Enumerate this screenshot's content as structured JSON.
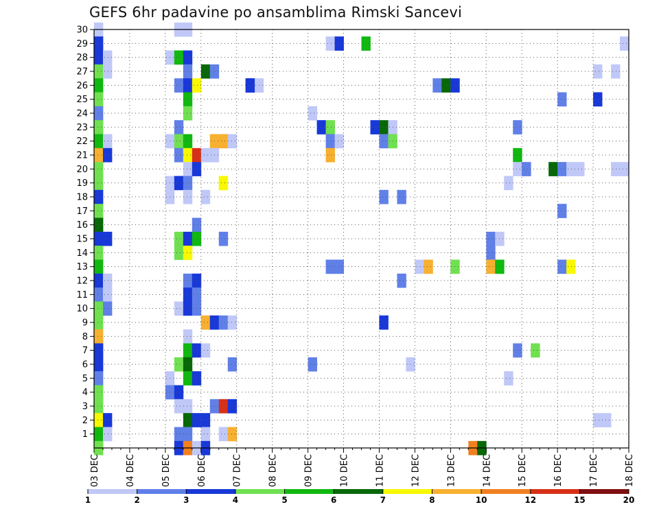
{
  "chart_data": {
    "type": "heatmap",
    "title": "GEFS 6hr padavine po ansamblima Rimski Sancevi",
    "xlabel": "",
    "ylabel": "",
    "x_start": "03 DEC",
    "x_end": "18 DEC",
    "x_ticks": [
      "03 DEC",
      "04 DEC",
      "05 DEC",
      "06 DEC",
      "07 DEC",
      "08 DEC",
      "09 DEC",
      "10 DEC",
      "11 DEC",
      "12 DEC",
      "13 DEC",
      "14 DEC",
      "15 DEC",
      "16 DEC",
      "17 DEC",
      "18 DEC"
    ],
    "x_step_hours": 6,
    "y_ticks": [
      1,
      2,
      3,
      4,
      5,
      6,
      7,
      8,
      9,
      10,
      11,
      12,
      13,
      14,
      15,
      16,
      17,
      18,
      19,
      20,
      21,
      22,
      23,
      24,
      25,
      26,
      27,
      28,
      29,
      30
    ],
    "y_range": [
      0,
      30
    ],
    "grid": true,
    "colorbar": {
      "colors": [
        "#c0c8f8",
        "#6080e8",
        "#1838d8",
        "#70e050",
        "#10b810",
        "#086808",
        "#f8f800",
        "#f8b030",
        "#f08020",
        "#d83018",
        "#801010"
      ],
      "labels": [
        "1",
        "2",
        "3",
        "4",
        "5",
        "6",
        "7",
        "8",
        "10",
        "12",
        "15",
        "20"
      ]
    },
    "cells": [
      {
        "m": 30,
        "s": 0,
        "c": "#c0c8f8"
      },
      {
        "m": 29,
        "s": 0,
        "c": "#1838d8"
      },
      {
        "m": 28,
        "s": 0,
        "c": "#1838d8"
      },
      {
        "m": 27,
        "s": 0,
        "c": "#70e050"
      },
      {
        "m": 26,
        "s": 0,
        "c": "#10b810"
      },
      {
        "m": 25,
        "s": 0,
        "c": "#70e050"
      },
      {
        "m": 24,
        "s": 0,
        "c": "#6080e8"
      },
      {
        "m": 23,
        "s": 0,
        "c": "#70e050"
      },
      {
        "m": 22,
        "s": 0,
        "c": "#10b810"
      },
      {
        "m": 21,
        "s": 0,
        "c": "#f8b030"
      },
      {
        "m": 20,
        "s": 0,
        "c": "#70e050"
      },
      {
        "m": 19,
        "s": 0,
        "c": "#70e050"
      },
      {
        "m": 18,
        "s": 0,
        "c": "#1838d8"
      },
      {
        "m": 17,
        "s": 0,
        "c": "#70e050"
      },
      {
        "m": 16,
        "s": 0,
        "c": "#086808"
      },
      {
        "m": 15,
        "s": 0,
        "c": "#1838d8"
      },
      {
        "m": 14,
        "s": 0,
        "c": "#70e050"
      },
      {
        "m": 13,
        "s": 0,
        "c": "#10b810"
      },
      {
        "m": 12,
        "s": 0,
        "c": "#1838d8"
      },
      {
        "m": 11,
        "s": 0,
        "c": "#6080e8"
      },
      {
        "m": 10,
        "s": 0,
        "c": "#70e050"
      },
      {
        "m": 9,
        "s": 0,
        "c": "#70e050"
      },
      {
        "m": 8,
        "s": 0,
        "c": "#f8b030"
      },
      {
        "m": 7,
        "s": 0,
        "c": "#1838d8"
      },
      {
        "m": 6,
        "s": 0,
        "c": "#1838d8"
      },
      {
        "m": 5,
        "s": 0,
        "c": "#6080e8"
      },
      {
        "m": 4,
        "s": 0,
        "c": "#70e050"
      },
      {
        "m": 3,
        "s": 0,
        "c": "#70e050"
      },
      {
        "m": 2,
        "s": 0,
        "c": "#f8f800"
      },
      {
        "m": 1,
        "s": 0,
        "c": "#10b810"
      },
      {
        "m": 0,
        "s": 0,
        "c": "#70e050"
      },
      {
        "m": 28,
        "s": 1,
        "c": "#c0c8f8"
      },
      {
        "m": 27,
        "s": 1,
        "c": "#c0c8f8"
      },
      {
        "m": 22,
        "s": 1,
        "c": "#c0c8f8"
      },
      {
        "m": 21,
        "s": 1,
        "c": "#1838d8"
      },
      {
        "m": 15,
        "s": 1,
        "c": "#1838d8"
      },
      {
        "m": 12,
        "s": 1,
        "c": "#c0c8f8"
      },
      {
        "m": 11,
        "s": 1,
        "c": "#c0c8f8"
      },
      {
        "m": 10,
        "s": 1,
        "c": "#6080e8"
      },
      {
        "m": 2,
        "s": 1,
        "c": "#1838d8"
      },
      {
        "m": 1,
        "s": 1,
        "c": "#c0c8f8"
      },
      {
        "m": 30,
        "s": 9,
        "c": "#c0c8f8"
      },
      {
        "m": 30,
        "s": 10,
        "c": "#c0c8f8"
      },
      {
        "m": 28,
        "s": 8,
        "c": "#c0c8f8"
      },
      {
        "m": 28,
        "s": 9,
        "c": "#10b810"
      },
      {
        "m": 28,
        "s": 10,
        "c": "#1838d8"
      },
      {
        "m": 27,
        "s": 10,
        "c": "#6080e8"
      },
      {
        "m": 27,
        "s": 12,
        "c": "#086808"
      },
      {
        "m": 27,
        "s": 13,
        "c": "#6080e8"
      },
      {
        "m": 26,
        "s": 9,
        "c": "#6080e8"
      },
      {
        "m": 26,
        "s": 10,
        "c": "#1838d8"
      },
      {
        "m": 26,
        "s": 11,
        "c": "#f8f800"
      },
      {
        "m": 26,
        "s": 17,
        "c": "#1838d8"
      },
      {
        "m": 26,
        "s": 18,
        "c": "#c0c8f8"
      },
      {
        "m": 25,
        "s": 10,
        "c": "#10b810"
      },
      {
        "m": 24,
        "s": 10,
        "c": "#70e050"
      },
      {
        "m": 23,
        "s": 9,
        "c": "#6080e8"
      },
      {
        "m": 22,
        "s": 8,
        "c": "#c0c8f8"
      },
      {
        "m": 22,
        "s": 9,
        "c": "#70e050"
      },
      {
        "m": 22,
        "s": 10,
        "c": "#10b810"
      },
      {
        "m": 22,
        "s": 13,
        "c": "#f8b030"
      },
      {
        "m": 22,
        "s": 14,
        "c": "#f8b030"
      },
      {
        "m": 22,
        "s": 15,
        "c": "#c0c8f8"
      },
      {
        "m": 21,
        "s": 9,
        "c": "#6080e8"
      },
      {
        "m": 21,
        "s": 10,
        "c": "#f8f800"
      },
      {
        "m": 21,
        "s": 11,
        "c": "#d83018"
      },
      {
        "m": 21,
        "s": 12,
        "c": "#c0c8f8"
      },
      {
        "m": 21,
        "s": 13,
        "c": "#c0c8f8"
      },
      {
        "m": 20,
        "s": 10,
        "c": "#c0c8f8"
      },
      {
        "m": 20,
        "s": 11,
        "c": "#1838d8"
      },
      {
        "m": 19,
        "s": 8,
        "c": "#c0c8f8"
      },
      {
        "m": 19,
        "s": 9,
        "c": "#1838d8"
      },
      {
        "m": 19,
        "s": 10,
        "c": "#6080e8"
      },
      {
        "m": 19,
        "s": 14,
        "c": "#f8f800"
      },
      {
        "m": 18,
        "s": 8,
        "c": "#c0c8f8"
      },
      {
        "m": 18,
        "s": 10,
        "c": "#c0c8f8"
      },
      {
        "m": 18,
        "s": 12,
        "c": "#c0c8f8"
      },
      {
        "m": 16,
        "s": 11,
        "c": "#6080e8"
      },
      {
        "m": 15,
        "s": 9,
        "c": "#70e050"
      },
      {
        "m": 15,
        "s": 10,
        "c": "#1838d8"
      },
      {
        "m": 15,
        "s": 11,
        "c": "#10b810"
      },
      {
        "m": 15,
        "s": 14,
        "c": "#6080e8"
      },
      {
        "m": 14,
        "s": 9,
        "c": "#70e050"
      },
      {
        "m": 14,
        "s": 10,
        "c": "#f8f800"
      },
      {
        "m": 12,
        "s": 10,
        "c": "#6080e8"
      },
      {
        "m": 12,
        "s": 11,
        "c": "#1838d8"
      },
      {
        "m": 11,
        "s": 10,
        "c": "#1838d8"
      },
      {
        "m": 11,
        "s": 11,
        "c": "#6080e8"
      },
      {
        "m": 10,
        "s": 9,
        "c": "#c0c8f8"
      },
      {
        "m": 10,
        "s": 10,
        "c": "#1838d8"
      },
      {
        "m": 10,
        "s": 11,
        "c": "#6080e8"
      },
      {
        "m": 9,
        "s": 12,
        "c": "#f8b030"
      },
      {
        "m": 9,
        "s": 13,
        "c": "#1838d8"
      },
      {
        "m": 9,
        "s": 14,
        "c": "#6080e8"
      },
      {
        "m": 9,
        "s": 15,
        "c": "#c0c8f8"
      },
      {
        "m": 8,
        "s": 10,
        "c": "#c0c8f8"
      },
      {
        "m": 7,
        "s": 10,
        "c": "#10b810"
      },
      {
        "m": 7,
        "s": 11,
        "c": "#1838d8"
      },
      {
        "m": 7,
        "s": 12,
        "c": "#c0c8f8"
      },
      {
        "m": 6,
        "s": 9,
        "c": "#70e050"
      },
      {
        "m": 6,
        "s": 10,
        "c": "#086808"
      },
      {
        "m": 6,
        "s": 15,
        "c": "#6080e8"
      },
      {
        "m": 5,
        "s": 8,
        "c": "#c0c8f8"
      },
      {
        "m": 5,
        "s": 10,
        "c": "#10b810"
      },
      {
        "m": 5,
        "s": 11,
        "c": "#1838d8"
      },
      {
        "m": 4,
        "s": 8,
        "c": "#6080e8"
      },
      {
        "m": 4,
        "s": 9,
        "c": "#1838d8"
      },
      {
        "m": 3,
        "s": 9,
        "c": "#c0c8f8"
      },
      {
        "m": 3,
        "s": 10,
        "c": "#c0c8f8"
      },
      {
        "m": 3,
        "s": 13,
        "c": "#6080e8"
      },
      {
        "m": 3,
        "s": 14,
        "c": "#d83018"
      },
      {
        "m": 3,
        "s": 15,
        "c": "#1838d8"
      },
      {
        "m": 2,
        "s": 10,
        "c": "#086808"
      },
      {
        "m": 2,
        "s": 11,
        "c": "#1838d8"
      },
      {
        "m": 2,
        "s": 12,
        "c": "#1838d8"
      },
      {
        "m": 1,
        "s": 9,
        "c": "#6080e8"
      },
      {
        "m": 1,
        "s": 10,
        "c": "#6080e8"
      },
      {
        "m": 1,
        "s": 12,
        "c": "#c0c8f8"
      },
      {
        "m": 1,
        "s": 14,
        "c": "#c0c8f8"
      },
      {
        "m": 1,
        "s": 15,
        "c": "#f8b030"
      },
      {
        "m": 0,
        "s": 9,
        "c": "#1838d8"
      },
      {
        "m": 0,
        "s": 10,
        "c": "#f08020"
      },
      {
        "m": 0,
        "s": 11,
        "c": "#c0c8f8"
      },
      {
        "m": 0,
        "s": 12,
        "c": "#1838d8"
      },
      {
        "m": 26,
        "s": 17,
        "c": "#1838d8"
      },
      {
        "m": 24,
        "s": 24,
        "c": "#c0c8f8"
      },
      {
        "m": 23,
        "s": 25,
        "c": "#1838d8"
      },
      {
        "m": 23,
        "s": 26,
        "c": "#70e050"
      },
      {
        "m": 22,
        "s": 26,
        "c": "#6080e8"
      },
      {
        "m": 22,
        "s": 27,
        "c": "#c0c8f8"
      },
      {
        "m": 21,
        "s": 26,
        "c": "#f8b030"
      },
      {
        "m": 13,
        "s": 26,
        "c": "#6080e8"
      },
      {
        "m": 13,
        "s": 27,
        "c": "#6080e8"
      },
      {
        "m": 6,
        "s": 24,
        "c": "#6080e8"
      },
      {
        "m": 29,
        "s": 26,
        "c": "#c0c8f8"
      },
      {
        "m": 29,
        "s": 27,
        "c": "#1838d8"
      },
      {
        "m": 29,
        "s": 30,
        "c": "#10b810"
      },
      {
        "m": 23,
        "s": 31,
        "c": "#1838d8"
      },
      {
        "m": 23,
        "s": 32,
        "c": "#086808"
      },
      {
        "m": 23,
        "s": 33,
        "c": "#c0c8f8"
      },
      {
        "m": 22,
        "s": 32,
        "c": "#6080e8"
      },
      {
        "m": 22,
        "s": 33,
        "c": "#70e050"
      },
      {
        "m": 18,
        "s": 32,
        "c": "#6080e8"
      },
      {
        "m": 18,
        "s": 34,
        "c": "#6080e8"
      },
      {
        "m": 12,
        "s": 34,
        "c": "#6080e8"
      },
      {
        "m": 9,
        "s": 32,
        "c": "#1838d8"
      },
      {
        "m": 6,
        "s": 35,
        "c": "#c0c8f8"
      },
      {
        "m": 26,
        "s": 38,
        "c": "#6080e8"
      },
      {
        "m": 26,
        "s": 39,
        "c": "#086808"
      },
      {
        "m": 26,
        "s": 40,
        "c": "#1838d8"
      },
      {
        "m": 13,
        "s": 36,
        "c": "#c0c8f8"
      },
      {
        "m": 13,
        "s": 37,
        "c": "#f8b030"
      },
      {
        "m": 13,
        "s": 40,
        "c": "#70e050"
      },
      {
        "m": 15,
        "s": 44,
        "c": "#6080e8"
      },
      {
        "m": 15,
        "s": 45,
        "c": "#c0c8f8"
      },
      {
        "m": 14,
        "s": 44,
        "c": "#6080e8"
      },
      {
        "m": 13,
        "s": 44,
        "c": "#f8b030"
      },
      {
        "m": 13,
        "s": 45,
        "c": "#10b810"
      },
      {
        "m": 0,
        "s": 42,
        "c": "#f08020"
      },
      {
        "m": 0,
        "s": 43,
        "c": "#086808"
      },
      {
        "m": 23,
        "s": 47,
        "c": "#6080e8"
      },
      {
        "m": 21,
        "s": 47,
        "c": "#10b810"
      },
      {
        "m": 20,
        "s": 47,
        "c": "#c0c8f8"
      },
      {
        "m": 20,
        "s": 48,
        "c": "#6080e8"
      },
      {
        "m": 19,
        "s": 46,
        "c": "#c0c8f8"
      },
      {
        "m": 7,
        "s": 47,
        "c": "#6080e8"
      },
      {
        "m": 7,
        "s": 49,
        "c": "#70e050"
      },
      {
        "m": 5,
        "s": 46,
        "c": "#c0c8f8"
      },
      {
        "m": 25,
        "s": 52,
        "c": "#6080e8"
      },
      {
        "m": 20,
        "s": 51,
        "c": "#086808"
      },
      {
        "m": 20,
        "s": 52,
        "c": "#6080e8"
      },
      {
        "m": 20,
        "s": 53,
        "c": "#c0c8f8"
      },
      {
        "m": 20,
        "s": 54,
        "c": "#c0c8f8"
      },
      {
        "m": 17,
        "s": 52,
        "c": "#6080e8"
      },
      {
        "m": 13,
        "s": 52,
        "c": "#6080e8"
      },
      {
        "m": 13,
        "s": 53,
        "c": "#f8f800"
      },
      {
        "m": 27,
        "s": 56,
        "c": "#c0c8f8"
      },
      {
        "m": 27,
        "s": 58,
        "c": "#c0c8f8"
      },
      {
        "m": 25,
        "s": 56,
        "c": "#1838d8"
      },
      {
        "m": 2,
        "s": 56,
        "c": "#c0c8f8"
      },
      {
        "m": 2,
        "s": 57,
        "c": "#c0c8f8"
      },
      {
        "m": 29,
        "s": 59,
        "c": "#c0c8f8"
      },
      {
        "m": 20,
        "s": 58,
        "c": "#c0c8f8"
      },
      {
        "m": 20,
        "s": 59,
        "c": "#c0c8f8"
      }
    ]
  }
}
